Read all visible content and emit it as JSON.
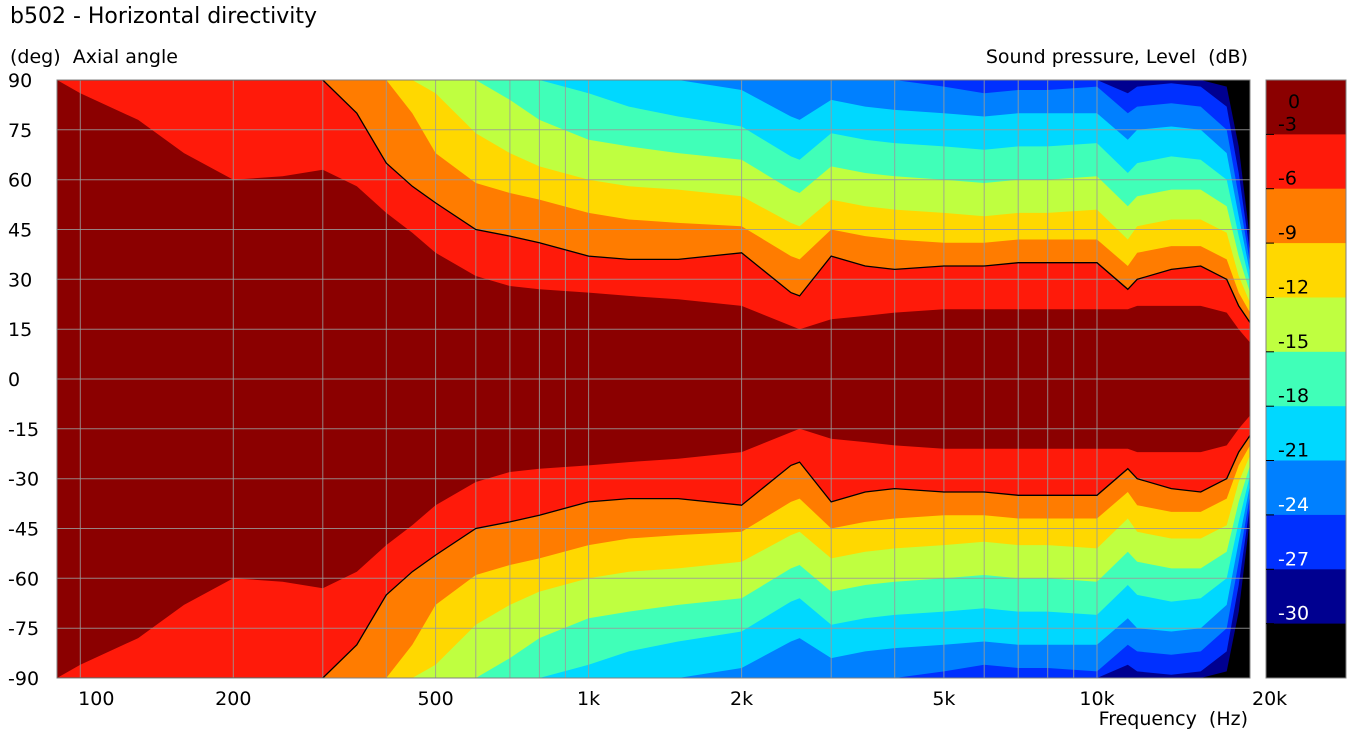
{
  "chart_data": {
    "type": "heatmap",
    "title": "b502 - Horizontal directivity",
    "ylabel": "(deg)  Axial angle",
    "colorbar_label": "Sound pressure, Level  (dB)",
    "xlabel": "Frequency  (Hz)",
    "x_scale": "log",
    "xlim": [
      90,
      20000
    ],
    "ylim": [
      -90,
      90
    ],
    "x_tick_labels": [
      {
        "value": 100,
        "label": "100"
      },
      {
        "value": 200,
        "label": "200"
      },
      {
        "value": 500,
        "label": "500"
      },
      {
        "value": 1000,
        "label": "1k"
      },
      {
        "value": 2000,
        "label": "2k"
      },
      {
        "value": 5000,
        "label": "5k"
      },
      {
        "value": 10000,
        "label": "10k"
      },
      {
        "value": 20000,
        "label": "20k"
      }
    ],
    "y_ticks": [
      90,
      75,
      60,
      45,
      30,
      15,
      0,
      -15,
      -30,
      -45,
      -60,
      -75,
      -90
    ],
    "grid": true,
    "colorbar_ticks": [
      "0",
      "-3",
      "-6",
      "-9",
      "-12",
      "-15",
      "-18",
      "-21",
      "-24",
      "-27",
      "-30"
    ],
    "levels": [
      {
        "min_db": -3,
        "color": "#8b0000"
      },
      {
        "min_db": -6,
        "color": "#ff1a0a"
      },
      {
        "min_db": -9,
        "color": "#ff7c00"
      },
      {
        "min_db": -12,
        "color": "#ffd800"
      },
      {
        "min_db": -15,
        "color": "#bfff40"
      },
      {
        "min_db": -18,
        "color": "#40ffb8"
      },
      {
        "min_db": -21,
        "color": "#00d8ff"
      },
      {
        "min_db": -24,
        "color": "#0080ff"
      },
      {
        "min_db": -27,
        "color": "#0030ff"
      },
      {
        "min_db": -30,
        "color": "#000090"
      },
      {
        "min_db": -999,
        "color": "#000000"
      }
    ],
    "contour_boundaries_deg": {
      "freq_hz": [
        90,
        100,
        130,
        160,
        200,
        250,
        300,
        350,
        400,
        450,
        500,
        600,
        700,
        800,
        1000,
        1200,
        1500,
        2000,
        2500,
        2600,
        3000,
        3500,
        4000,
        5000,
        6000,
        7000,
        8000,
        10000,
        11500,
        12000,
        14000,
        16000,
        18000,
        19000,
        20000
      ],
      "minus3": [
        90,
        86,
        78,
        68,
        60,
        61,
        63,
        58,
        50,
        44,
        38,
        31,
        28,
        27,
        26,
        25,
        24,
        22,
        16,
        15,
        18,
        19,
        20,
        21,
        21,
        21,
        21,
        21,
        21,
        22,
        22,
        22,
        20,
        15,
        11
      ],
      "minus6": [
        90,
        90,
        90,
        90,
        90,
        90,
        90,
        80,
        65,
        58,
        53,
        45,
        43,
        41,
        37,
        36,
        36,
        38,
        26,
        25,
        37,
        34,
        33,
        34,
        34,
        35,
        35,
        35,
        27,
        30,
        33,
        34,
        30,
        22,
        17
      ],
      "minus9": [
        90,
        90,
        90,
        90,
        90,
        90,
        90,
        90,
        90,
        80,
        68,
        59,
        56,
        54,
        50,
        48,
        47,
        46,
        37,
        36,
        45,
        43,
        42,
        41,
        41,
        42,
        42,
        42,
        34,
        38,
        40,
        40,
        36,
        26,
        20
      ],
      "minus12": [
        90,
        90,
        90,
        90,
        90,
        90,
        90,
        90,
        90,
        90,
        86,
        74,
        68,
        64,
        60,
        58,
        57,
        55,
        47,
        46,
        54,
        52,
        51,
        50,
        49,
        50,
        50,
        51,
        42,
        46,
        48,
        48,
        44,
        31,
        23
      ],
      "minus15": [
        90,
        90,
        90,
        90,
        90,
        90,
        90,
        90,
        90,
        90,
        90,
        90,
        84,
        78,
        72,
        70,
        68,
        66,
        57,
        56,
        64,
        62,
        61,
        60,
        59,
        60,
        60,
        61,
        52,
        55,
        57,
        57,
        52,
        37,
        26
      ],
      "minus18": [
        90,
        90,
        90,
        90,
        90,
        90,
        90,
        90,
        90,
        90,
        90,
        90,
        90,
        90,
        86,
        82,
        79,
        76,
        67,
        66,
        74,
        72,
        71,
        70,
        69,
        70,
        70,
        71,
        62,
        65,
        67,
        66,
        60,
        43,
        29
      ],
      "minus21": [
        90,
        90,
        90,
        90,
        90,
        90,
        90,
        90,
        90,
        90,
        90,
        90,
        90,
        90,
        90,
        90,
        90,
        87,
        79,
        78,
        84,
        82,
        81,
        80,
        79,
        80,
        80,
        80,
        72,
        75,
        76,
        75,
        68,
        49,
        32
      ],
      "minus24": [
        90,
        90,
        90,
        90,
        90,
        90,
        90,
        90,
        90,
        90,
        90,
        90,
        90,
        90,
        90,
        90,
        90,
        90,
        90,
        90,
        90,
        90,
        90,
        88,
        86,
        87,
        87,
        88,
        80,
        82,
        83,
        82,
        75,
        55,
        35
      ],
      "minus27": [
        90,
        90,
        90,
        90,
        90,
        90,
        90,
        90,
        90,
        90,
        90,
        90,
        90,
        90,
        90,
        90,
        90,
        90,
        90,
        90,
        90,
        90,
        90,
        90,
        90,
        90,
        90,
        90,
        86,
        88,
        89,
        88,
        82,
        62,
        38
      ],
      "minus30": [
        90,
        90,
        90,
        90,
        90,
        90,
        90,
        90,
        90,
        90,
        90,
        90,
        90,
        90,
        90,
        90,
        90,
        90,
        90,
        90,
        90,
        90,
        90,
        90,
        90,
        90,
        90,
        90,
        90,
        90,
        90,
        90,
        88,
        70,
        42
      ]
    }
  }
}
